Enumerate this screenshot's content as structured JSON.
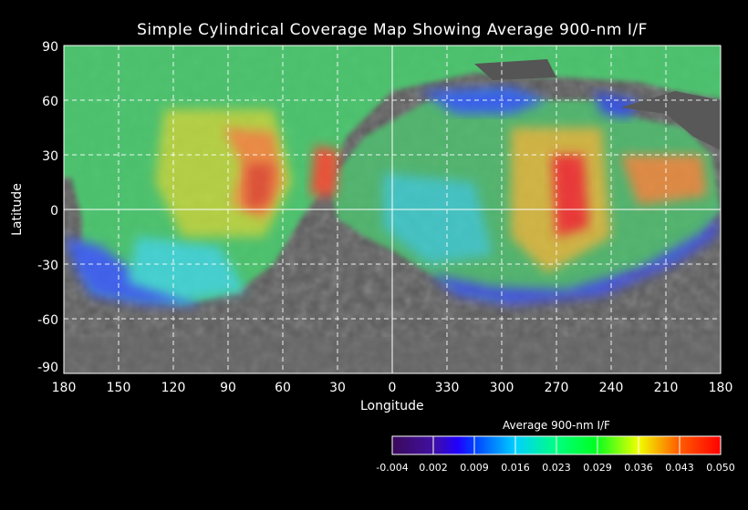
{
  "chart_data": {
    "type": "heatmap",
    "title": "Simple Cylindrical Coverage Map Showing Average 900-nm I/F",
    "xlabel": "Longitude",
    "ylabel": "Latitude",
    "x_ticks": [
      "180",
      "150",
      "120",
      "90",
      "60",
      "30",
      "0",
      "330",
      "300",
      "270",
      "240",
      "210",
      "180"
    ],
    "y_ticks": [
      "90",
      "60",
      "30",
      "0",
      "-30",
      "-60",
      "-90"
    ],
    "xlim": [
      180,
      -180
    ],
    "ylim": [
      -90,
      90
    ],
    "grid": true,
    "colorbar": {
      "title": "Average 900-nm I/F",
      "tick_labels": [
        "-0.004",
        "0.002",
        "0.009",
        "0.016",
        "0.023",
        "0.029",
        "0.036",
        "0.043",
        "0.050"
      ],
      "range": [
        -0.004,
        0.05
      ],
      "colors": [
        "#3a0a5a",
        "#2000ff",
        "#00a0ff",
        "#00ffd0",
        "#00ff20",
        "#c0ff00",
        "#ffa000",
        "#ff0000"
      ]
    },
    "features": [
      {
        "name": "high I/F region",
        "lon": 80,
        "lat": 15,
        "value": 0.04
      },
      {
        "name": "high I/F region",
        "lon": 275,
        "lat": 5,
        "value": 0.046
      },
      {
        "name": "high I/F region",
        "lon": 35,
        "lat": 15,
        "value": 0.042
      },
      {
        "name": "high I/F region",
        "lon": 220,
        "lat": 15,
        "value": 0.038
      }
    ]
  }
}
